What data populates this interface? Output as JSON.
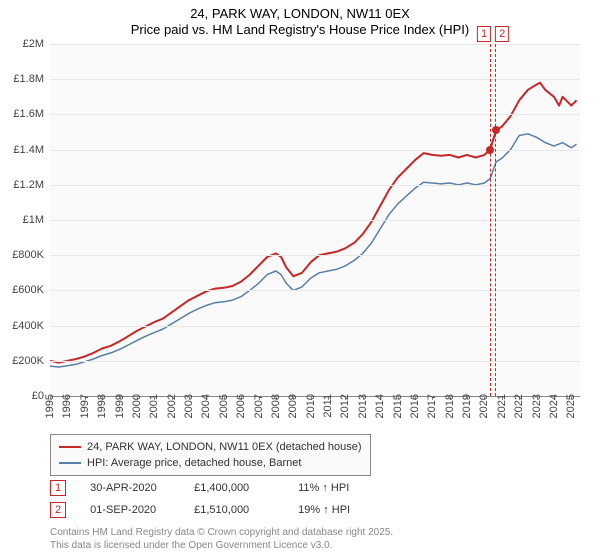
{
  "title": {
    "line1": "24, PARK WAY, LONDON, NW11 0EX",
    "line2": "Price paid vs. HM Land Registry's House Price Index (HPI)"
  },
  "chart": {
    "type": "line",
    "background_color": "#fafafa",
    "grid_color": "#e8e8e8",
    "axis_color": "#888888",
    "tick_font_size": 11,
    "tick_color": "#444444",
    "ylim": [
      0,
      2000000
    ],
    "ytick_step": 200000,
    "yticks": [
      {
        "v": 0,
        "label": "£0"
      },
      {
        "v": 200000,
        "label": "£200K"
      },
      {
        "v": 400000,
        "label": "£400K"
      },
      {
        "v": 600000,
        "label": "£600K"
      },
      {
        "v": 800000,
        "label": "£800K"
      },
      {
        "v": 1000000,
        "label": "£1M"
      },
      {
        "v": 1200000,
        "label": "£1.2M"
      },
      {
        "v": 1400000,
        "label": "£1.4M"
      },
      {
        "v": 1600000,
        "label": "£1.6M"
      },
      {
        "v": 1800000,
        "label": "£1.8M"
      },
      {
        "v": 2000000,
        "label": "£2M"
      }
    ],
    "xlim": [
      1995,
      2025.5
    ],
    "xticks": [
      1995,
      1996,
      1997,
      1998,
      1999,
      2000,
      2001,
      2002,
      2003,
      2004,
      2005,
      2006,
      2007,
      2008,
      2009,
      2010,
      2011,
      2012,
      2013,
      2014,
      2015,
      2016,
      2017,
      2018,
      2019,
      2020,
      2021,
      2022,
      2023,
      2024,
      2025
    ],
    "series": [
      {
        "name": "24, PARK WAY, LONDON, NW11 0EX (detached house)",
        "color": "#c62828",
        "line_width": 2,
        "points": [
          [
            1995,
            200000
          ],
          [
            1995.5,
            190000
          ],
          [
            1996,
            200000
          ],
          [
            1996.5,
            210000
          ],
          [
            1997,
            225000
          ],
          [
            1997.5,
            245000
          ],
          [
            1998,
            270000
          ],
          [
            1998.5,
            285000
          ],
          [
            1999,
            310000
          ],
          [
            1999.5,
            340000
          ],
          [
            2000,
            370000
          ],
          [
            2000.5,
            395000
          ],
          [
            2001,
            420000
          ],
          [
            2001.5,
            440000
          ],
          [
            2002,
            475000
          ],
          [
            2002.5,
            510000
          ],
          [
            2003,
            545000
          ],
          [
            2003.5,
            570000
          ],
          [
            2004,
            595000
          ],
          [
            2004.5,
            610000
          ],
          [
            2005,
            615000
          ],
          [
            2005.5,
            625000
          ],
          [
            2006,
            650000
          ],
          [
            2006.5,
            690000
          ],
          [
            2007,
            740000
          ],
          [
            2007.5,
            790000
          ],
          [
            2008,
            810000
          ],
          [
            2008.3,
            790000
          ],
          [
            2008.6,
            730000
          ],
          [
            2009,
            680000
          ],
          [
            2009.5,
            700000
          ],
          [
            2010,
            760000
          ],
          [
            2010.5,
            800000
          ],
          [
            2011,
            810000
          ],
          [
            2011.5,
            820000
          ],
          [
            2012,
            840000
          ],
          [
            2012.5,
            870000
          ],
          [
            2013,
            920000
          ],
          [
            2013.5,
            990000
          ],
          [
            2014,
            1080000
          ],
          [
            2014.5,
            1170000
          ],
          [
            2015,
            1240000
          ],
          [
            2015.5,
            1290000
          ],
          [
            2016,
            1340000
          ],
          [
            2016.5,
            1380000
          ],
          [
            2017,
            1370000
          ],
          [
            2017.5,
            1365000
          ],
          [
            2018,
            1370000
          ],
          [
            2018.5,
            1355000
          ],
          [
            2019,
            1370000
          ],
          [
            2019.5,
            1355000
          ],
          [
            2020,
            1370000
          ],
          [
            2020.33,
            1400000
          ],
          [
            2020.67,
            1510000
          ],
          [
            2021,
            1530000
          ],
          [
            2021.5,
            1590000
          ],
          [
            2022,
            1680000
          ],
          [
            2022.5,
            1740000
          ],
          [
            2023,
            1770000
          ],
          [
            2023.2,
            1780000
          ],
          [
            2023.5,
            1740000
          ],
          [
            2024,
            1700000
          ],
          [
            2024.3,
            1650000
          ],
          [
            2024.5,
            1700000
          ],
          [
            2025,
            1650000
          ],
          [
            2025.3,
            1680000
          ]
        ]
      },
      {
        "name": "HPI: Average price, detached house, Barnet",
        "color": "#5b7ea8",
        "line_width": 1.5,
        "points": [
          [
            1995,
            170000
          ],
          [
            1995.5,
            165000
          ],
          [
            1996,
            172000
          ],
          [
            1996.5,
            180000
          ],
          [
            1997,
            195000
          ],
          [
            1997.5,
            210000
          ],
          [
            1998,
            230000
          ],
          [
            1998.5,
            245000
          ],
          [
            1999,
            265000
          ],
          [
            1999.5,
            290000
          ],
          [
            2000,
            315000
          ],
          [
            2000.5,
            340000
          ],
          [
            2001,
            360000
          ],
          [
            2001.5,
            380000
          ],
          [
            2002,
            410000
          ],
          [
            2002.5,
            440000
          ],
          [
            2003,
            470000
          ],
          [
            2003.5,
            495000
          ],
          [
            2004,
            515000
          ],
          [
            2004.5,
            530000
          ],
          [
            2005,
            535000
          ],
          [
            2005.5,
            545000
          ],
          [
            2006,
            565000
          ],
          [
            2006.5,
            600000
          ],
          [
            2007,
            640000
          ],
          [
            2007.5,
            690000
          ],
          [
            2008,
            710000
          ],
          [
            2008.3,
            690000
          ],
          [
            2008.6,
            640000
          ],
          [
            2009,
            600000
          ],
          [
            2009.5,
            620000
          ],
          [
            2010,
            670000
          ],
          [
            2010.5,
            700000
          ],
          [
            2011,
            710000
          ],
          [
            2011.5,
            720000
          ],
          [
            2012,
            740000
          ],
          [
            2012.5,
            770000
          ],
          [
            2013,
            810000
          ],
          [
            2013.5,
            870000
          ],
          [
            2014,
            950000
          ],
          [
            2014.5,
            1030000
          ],
          [
            2015,
            1090000
          ],
          [
            2015.5,
            1135000
          ],
          [
            2016,
            1180000
          ],
          [
            2016.5,
            1215000
          ],
          [
            2017,
            1210000
          ],
          [
            2017.5,
            1205000
          ],
          [
            2018,
            1210000
          ],
          [
            2018.5,
            1200000
          ],
          [
            2019,
            1210000
          ],
          [
            2019.5,
            1200000
          ],
          [
            2020,
            1210000
          ],
          [
            2020.33,
            1235000
          ],
          [
            2020.67,
            1330000
          ],
          [
            2021,
            1350000
          ],
          [
            2021.5,
            1400000
          ],
          [
            2022,
            1480000
          ],
          [
            2022.5,
            1490000
          ],
          [
            2023,
            1470000
          ],
          [
            2023.5,
            1440000
          ],
          [
            2024,
            1420000
          ],
          [
            2024.5,
            1440000
          ],
          [
            2025,
            1410000
          ],
          [
            2025.3,
            1430000
          ]
        ]
      }
    ],
    "markers": {
      "band_x": [
        2020.33,
        2020.67
      ],
      "labels": [
        "1",
        "2"
      ],
      "dot_color": "#c62828",
      "dots": [
        {
          "x": 2020.33,
          "y": 1400000
        },
        {
          "x": 2020.67,
          "y": 1510000
        }
      ]
    }
  },
  "legend": {
    "border_color": "#888888",
    "background": "#fafafa",
    "font_size": 11,
    "items": [
      {
        "color": "#c62828",
        "label": "24, PARK WAY, LONDON, NW11 0EX (detached house)"
      },
      {
        "color": "#5b7ea8",
        "label": "HPI: Average price, detached house, Barnet"
      }
    ]
  },
  "transactions": [
    {
      "idx": "1",
      "date": "30-APR-2020",
      "price": "£1,400,000",
      "diff": "11% ↑ HPI"
    },
    {
      "idx": "2",
      "date": "01-SEP-2020",
      "price": "£1,510,000",
      "diff": "19% ↑ HPI"
    }
  ],
  "footer": {
    "line1": "Contains HM Land Registry data © Crown copyright and database right 2025.",
    "line2": "This data is licensed under the Open Government Licence v3.0."
  }
}
